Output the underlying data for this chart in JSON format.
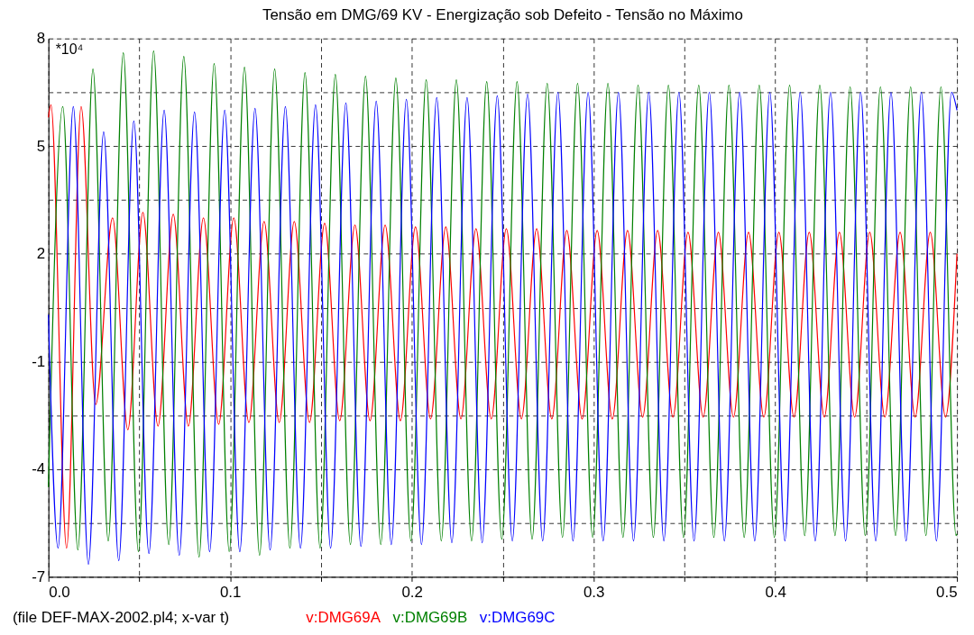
{
  "chart_data": {
    "type": "line",
    "title": "Tensão em DMG/69 KV - Energização sob Defeito - Tensão no Máximo",
    "annotations": [
      "*10⁴",
      "(file DEF-MAX-2002.pl4; x-var t)"
    ],
    "xlim": [
      0,
      0.5
    ],
    "xticks": [
      {
        "value": 0,
        "label": "0.0"
      },
      {
        "value": 0.05,
        "label": null
      },
      0.1,
      {
        "value": 0.15,
        "label": null
      },
      0.2,
      {
        "value": 0.25,
        "label": null
      },
      0.3,
      {
        "value": 0.35,
        "label": null
      },
      0.4,
      {
        "value": 0.45,
        "label": null
      },
      0.5
    ],
    "ylim": [
      -7,
      8
    ],
    "yticks": [
      8,
      {
        "value": 6.5,
        "label": null
      },
      5,
      {
        "value": 3.5,
        "label": null
      },
      2,
      {
        "value": 0.5,
        "label": null
      },
      -1,
      {
        "value": -2.5,
        "label": null
      },
      -4,
      {
        "value": -5.5,
        "label": null
      },
      -7
    ],
    "grid": true,
    "legend": "bottom",
    "line_style": "solid",
    "marker": "none",
    "series": [
      {
        "name": "v:DMG69A",
        "color": "#ff0000",
        "x": [
          0,
          0.0014,
          0.01,
          0.018,
          0.026,
          0.0353,
          0.0437,
          0.052,
          0.0603,
          0.0687,
          0.077,
          0.0853,
          0.0937,
          0.102,
          0.1103,
          0.1187,
          0.127,
          0.1353,
          0.1437,
          0.152,
          0.1603,
          0.1687,
          0.177,
          0.1853,
          0.1937,
          0.202,
          0.2103,
          0.2187,
          0.227,
          0.2353,
          0.2437,
          0.252,
          0.2603,
          0.2687,
          0.277,
          0.2853,
          0.2937,
          0.302,
          0.3103,
          0.3187,
          0.327,
          0.3353,
          0.3437,
          0.352,
          0.3603,
          0.3687,
          0.377,
          0.3853,
          0.3937,
          0.402,
          0.4103,
          0.4187,
          0.427,
          0.4353,
          0.4437,
          0.452,
          0.4603,
          0.4687,
          0.477,
          0.4853,
          0.4937,
          0.5
        ],
        "values": [
          5.8,
          6.15,
          -6.2,
          6.1,
          -2.2,
          3.0,
          -2.9,
          3.15,
          -2.8,
          3.1,
          -2.8,
          3.0,
          -2.75,
          3.0,
          -2.7,
          2.9,
          -2.7,
          2.9,
          -2.7,
          2.85,
          -2.65,
          2.8,
          -2.65,
          2.8,
          -2.65,
          2.75,
          -2.6,
          2.75,
          -2.6,
          2.7,
          -2.6,
          2.7,
          -2.6,
          2.7,
          -2.6,
          2.65,
          -2.6,
          2.65,
          -2.6,
          2.65,
          -2.55,
          2.65,
          -2.55,
          2.6,
          -2.55,
          2.6,
          -2.55,
          2.6,
          -2.55,
          2.6,
          -2.55,
          2.6,
          -2.55,
          2.6,
          -2.55,
          2.6,
          -2.55,
          2.6,
          -2.55,
          2.6,
          -2.55,
          2.0
        ]
      },
      {
        "name": "v:DMG69B",
        "color": "#008000",
        "x": [
          0,
          0.0079,
          0.0162,
          0.0245,
          0.0329,
          0.0412,
          0.0495,
          0.0579,
          0.0662,
          0.0745,
          0.0829,
          0.0912,
          0.0995,
          0.1079,
          0.1162,
          0.1245,
          0.1329,
          0.1412,
          0.1495,
          0.1579,
          0.1662,
          0.1745,
          0.1829,
          0.1912,
          0.1995,
          0.2079,
          0.2162,
          0.2245,
          0.2329,
          0.2412,
          0.2495,
          0.2579,
          0.2662,
          0.2745,
          0.2829,
          0.2912,
          0.2995,
          0.3079,
          0.3162,
          0.3245,
          0.3329,
          0.3412,
          0.3495,
          0.3579,
          0.3662,
          0.3745,
          0.3829,
          0.3912,
          0.3995,
          0.4079,
          0.4162,
          0.4245,
          0.4329,
          0.4412,
          0.4495,
          0.4579,
          0.4662,
          0.4745,
          0.4829,
          0.4912,
          0.4995,
          0.5
        ],
        "values": [
          -4.5,
          6.1,
          -6.25,
          7.15,
          -6.0,
          7.6,
          -6.3,
          7.65,
          -6.1,
          7.5,
          -6.45,
          7.3,
          -6.3,
          7.2,
          -6.4,
          7.15,
          -6.2,
          7.05,
          -6.2,
          7.0,
          -6.1,
          6.95,
          -6.1,
          6.9,
          -6.0,
          6.85,
          -6.0,
          6.85,
          -6.0,
          6.8,
          -5.95,
          6.8,
          -5.95,
          6.75,
          -5.9,
          6.75,
          -5.9,
          6.75,
          -5.9,
          6.7,
          -5.9,
          6.7,
          -5.9,
          6.7,
          -5.9,
          6.7,
          -5.9,
          6.7,
          -5.9,
          6.7,
          -5.85,
          6.7,
          -5.85,
          6.65,
          -5.85,
          6.65,
          -5.85,
          6.65,
          -5.85,
          6.65,
          -5.85,
          -5.8
        ]
      },
      {
        "name": "v:DMG69C",
        "color": "#0000ff",
        "x": [
          0,
          0.0053,
          0.0137,
          0.022,
          0.0304,
          0.0387,
          0.047,
          0.0553,
          0.0637,
          0.072,
          0.0804,
          0.0887,
          0.097,
          0.1053,
          0.1137,
          0.122,
          0.1304,
          0.1387,
          0.147,
          0.1553,
          0.1637,
          0.172,
          0.1804,
          0.1887,
          0.197,
          0.2053,
          0.2137,
          0.222,
          0.2304,
          0.2387,
          0.247,
          0.2553,
          0.2637,
          0.272,
          0.2804,
          0.2887,
          0.297,
          0.3053,
          0.3137,
          0.322,
          0.3304,
          0.3387,
          0.347,
          0.3553,
          0.3637,
          0.372,
          0.3804,
          0.3887,
          0.397,
          0.4053,
          0.4137,
          0.422,
          0.4304,
          0.4387,
          0.447,
          0.4553,
          0.4637,
          0.472,
          0.4804,
          0.4887,
          0.497,
          0.5
        ],
        "values": [
          0.3,
          -6.2,
          6.1,
          -6.65,
          5.4,
          -6.55,
          5.7,
          -6.35,
          6.0,
          -6.4,
          5.95,
          -6.3,
          6.0,
          -6.3,
          6.05,
          -6.25,
          6.1,
          -6.2,
          6.15,
          -6.2,
          6.2,
          -6.15,
          6.25,
          -6.1,
          6.3,
          -6.1,
          6.35,
          -6.05,
          6.35,
          -6.05,
          6.4,
          -6.0,
          6.45,
          -6.0,
          6.5,
          -6.0,
          6.5,
          -6.0,
          6.5,
          -6.0,
          6.5,
          -6.0,
          6.5,
          -6.0,
          6.5,
          -6.0,
          6.5,
          -6.0,
          6.5,
          -6.0,
          6.5,
          -6.0,
          6.5,
          -6.0,
          6.5,
          -6.0,
          6.5,
          -6.0,
          6.5,
          -6.0,
          6.5,
          6.0
        ]
      }
    ]
  }
}
